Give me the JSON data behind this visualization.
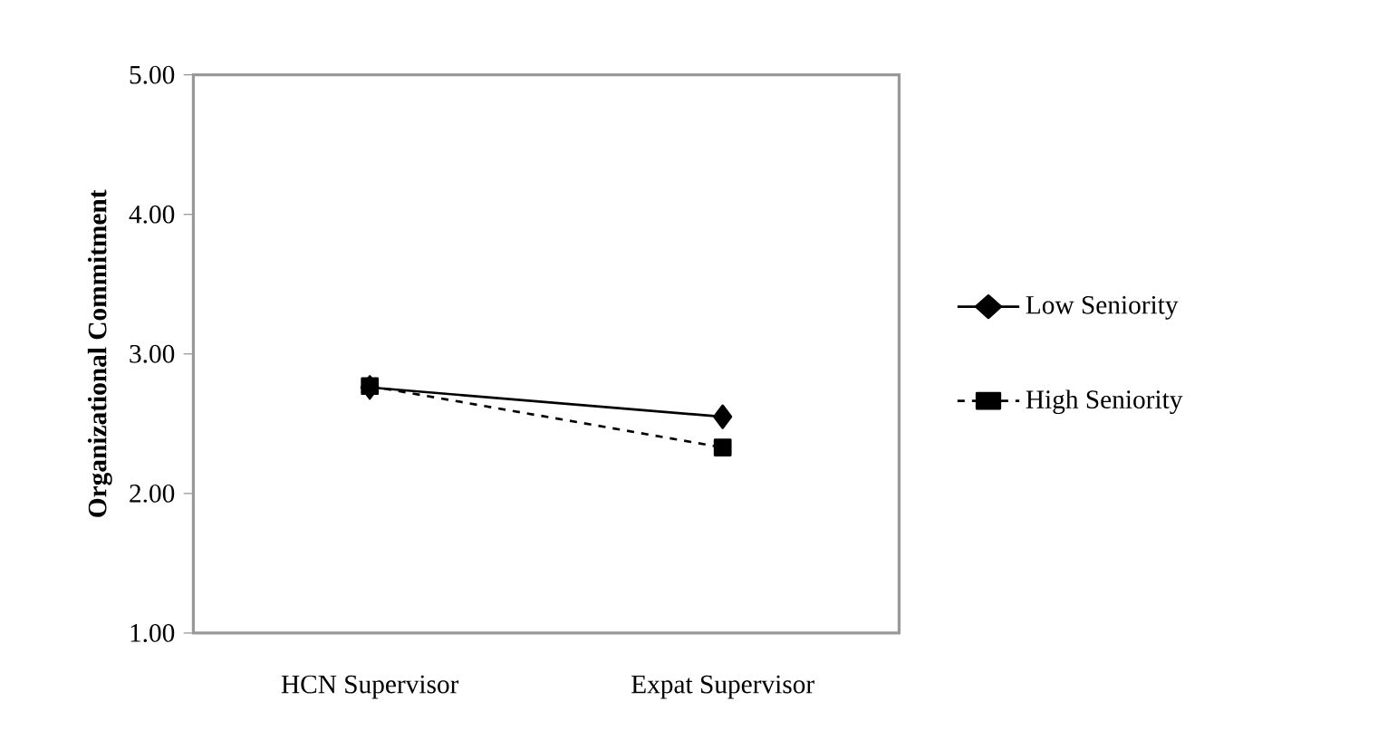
{
  "chart_data": {
    "type": "line",
    "ylabel": "Organizational Commitment",
    "categories": [
      "HCN Supervisor",
      "Expat Supervisor"
    ],
    "series": [
      {
        "name": "Low Seniority",
        "color": "#000000",
        "values": [
          2.76,
          2.55
        ],
        "marker": "diamond",
        "line_style": "solid"
      },
      {
        "name": "High Seniority",
        "color": "#000000",
        "values": [
          2.77,
          2.33
        ],
        "marker": "square",
        "line_style": "dashed"
      }
    ],
    "ylim": [
      1,
      5
    ],
    "yticks": [
      {
        "value": 1,
        "label": "1.00"
      },
      {
        "value": 2,
        "label": "2.00"
      },
      {
        "value": 3,
        "label": "3.00"
      },
      {
        "value": 4,
        "label": "4.00"
      },
      {
        "value": 5,
        "label": "5.00"
      }
    ],
    "grid": false,
    "legend": "right"
  }
}
